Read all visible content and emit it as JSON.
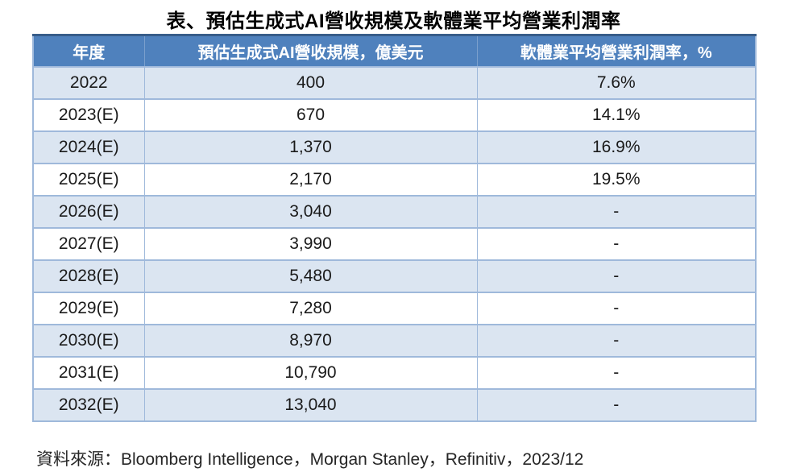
{
  "title": "表、預估生成式AI營收規模及軟體業平均營業利潤率",
  "table": {
    "columns": [
      "年度",
      "預估生成式AI營收規模，億美元",
      "軟體業平均營業利潤率，%"
    ],
    "rows": [
      [
        "2022",
        "400",
        "7.6%"
      ],
      [
        "2023(E)",
        "670",
        "14.1%"
      ],
      [
        "2024(E)",
        "1,370",
        "16.9%"
      ],
      [
        "2025(E)",
        "2,170",
        "19.5%"
      ],
      [
        "2026(E)",
        "3,040",
        "-"
      ],
      [
        "2027(E)",
        "3,990",
        "-"
      ],
      [
        "2028(E)",
        "5,480",
        "-"
      ],
      [
        "2029(E)",
        "7,280",
        "-"
      ],
      [
        "2030(E)",
        "8,970",
        "-"
      ],
      [
        "2031(E)",
        "10,790",
        "-"
      ],
      [
        "2032(E)",
        "13,040",
        "-"
      ]
    ]
  },
  "source": "資料來源：Bloomberg Intelligence，Morgan Stanley，Refinitiv，2023/12",
  "colors": {
    "header_bg": "#4F81BD",
    "header_text": "#FFFFFF",
    "header_top_border": "#385D8A",
    "band_row_bg": "#DBE5F1",
    "plain_row_bg": "#FFFFFF",
    "cell_border": "#9FB9DB",
    "body_text": "#1A1A1A"
  },
  "chart_data": {
    "type": "table",
    "title": "表、預估生成式AI營收規模及軟體業平均營業利潤率",
    "categories": [
      "2022",
      "2023(E)",
      "2024(E)",
      "2025(E)",
      "2026(E)",
      "2027(E)",
      "2028(E)",
      "2029(E)",
      "2030(E)",
      "2031(E)",
      "2032(E)"
    ],
    "series": [
      {
        "name": "預估生成式AI營收規模，億美元",
        "values": [
          400,
          670,
          1370,
          2170,
          3040,
          3990,
          5480,
          7280,
          8970,
          10790,
          13040
        ]
      },
      {
        "name": "軟體業平均營業利潤率，%",
        "values": [
          7.6,
          14.1,
          16.9,
          19.5,
          null,
          null,
          null,
          null,
          null,
          null,
          null
        ]
      }
    ],
    "source": "資料來源：Bloomberg Intelligence，Morgan Stanley，Refinitiv，2023/12"
  }
}
